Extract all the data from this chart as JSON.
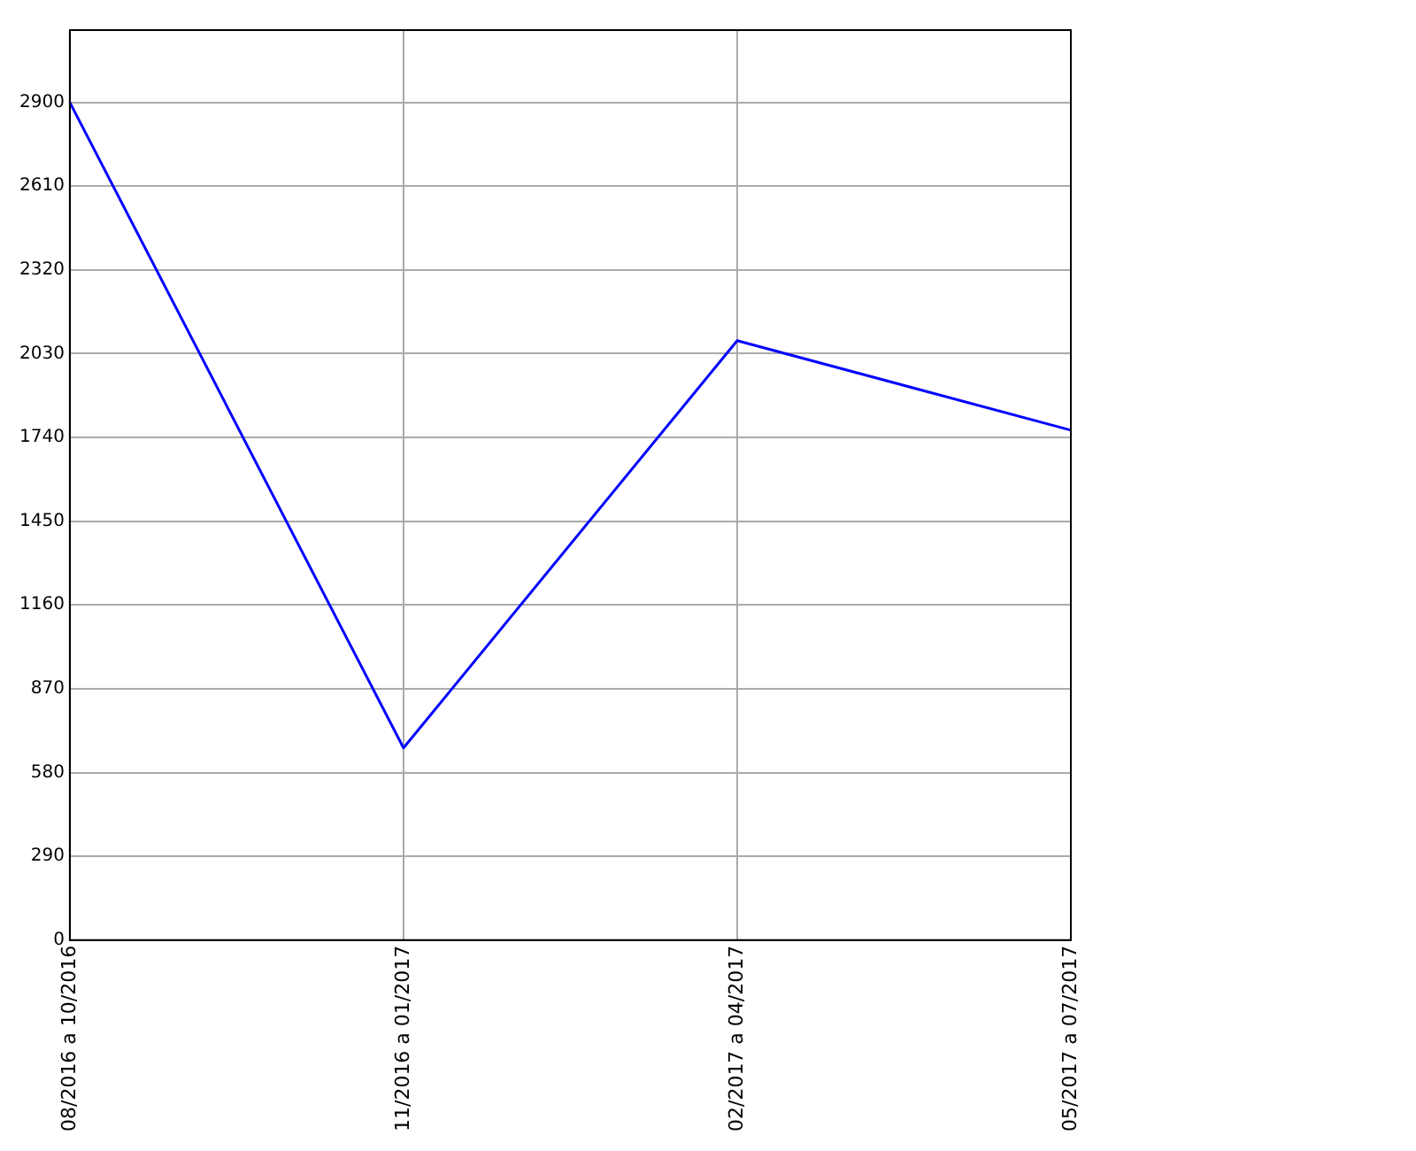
{
  "chart_data": {
    "type": "line",
    "categories": [
      "08/2016 a 10/2016",
      "11/2016 a 01/2017",
      "02/2017 a 04/2017",
      "05/2017 a 07/2017"
    ],
    "series": [
      {
        "color": "#0000ff",
        "values": [
          2900,
          665,
          2075,
          1765
        ]
      }
    ],
    "ylim": [
      0,
      3150
    ],
    "yticks": [
      0,
      290,
      580,
      870,
      1160,
      1450,
      1740,
      2030,
      2320,
      2610,
      2900
    ],
    "grid": true,
    "legend": false,
    "marker": "none",
    "line_style": "solid"
  }
}
